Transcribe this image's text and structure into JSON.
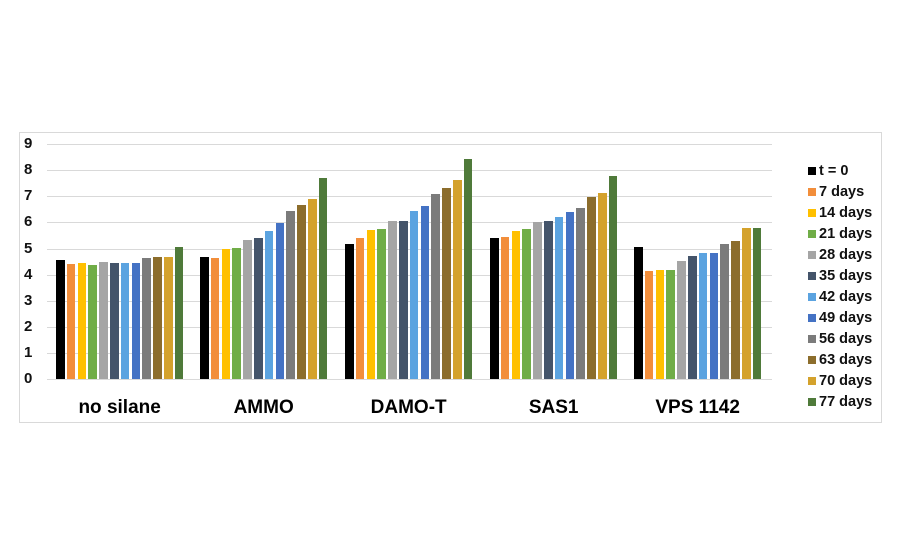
{
  "chart_data": {
    "type": "bar",
    "title": "",
    "xlabel": "",
    "ylabel": "",
    "ylim": [
      0,
      9
    ],
    "yticks": [
      0,
      1,
      2,
      3,
      4,
      5,
      6,
      7,
      8,
      9
    ],
    "grid": true,
    "legend_position": "right",
    "categories": [
      "no silane",
      "AMMO",
      "DAMO-T",
      "SAS1",
      "VPS 1142"
    ],
    "series": [
      {
        "name": "t = 0",
        "color": "#000000",
        "values": [
          4.57,
          4.67,
          5.17,
          5.4,
          5.07
        ]
      },
      {
        "name": "7 days",
        "color": "#f28e3b",
        "values": [
          4.41,
          4.64,
          5.39,
          5.45,
          4.13
        ]
      },
      {
        "name": "14 days",
        "color": "#ffc000",
        "values": [
          4.45,
          4.98,
          5.7,
          5.68,
          4.18
        ]
      },
      {
        "name": "21 days",
        "color": "#70ad47",
        "values": [
          4.37,
          5.03,
          5.73,
          5.73,
          4.16
        ]
      },
      {
        "name": "28 days",
        "color": "#a5a5a5",
        "values": [
          4.49,
          5.33,
          6.06,
          6.0,
          4.52
        ]
      },
      {
        "name": "35 days",
        "color": "#44546a",
        "values": [
          4.45,
          5.4,
          6.06,
          6.07,
          4.7
        ]
      },
      {
        "name": "42 days",
        "color": "#5ba3e0",
        "values": [
          4.44,
          5.67,
          6.45,
          6.21,
          4.81
        ]
      },
      {
        "name": "49 days",
        "color": "#4472c4",
        "values": [
          4.45,
          5.99,
          6.63,
          6.39,
          4.84
        ]
      },
      {
        "name": "56 days",
        "color": "#7b7b7b",
        "values": [
          4.63,
          6.44,
          7.07,
          6.56,
          5.16
        ]
      },
      {
        "name": "63 days",
        "color": "#8c6d2c",
        "values": [
          4.68,
          6.65,
          7.32,
          6.99,
          5.29
        ]
      },
      {
        "name": "70 days",
        "color": "#d4a22c",
        "values": [
          4.68,
          6.88,
          7.64,
          7.14,
          5.77
        ]
      },
      {
        "name": "77 days",
        "color": "#4f7a3a",
        "values": [
          5.05,
          7.71,
          8.41,
          7.78,
          5.8
        ]
      }
    ]
  }
}
